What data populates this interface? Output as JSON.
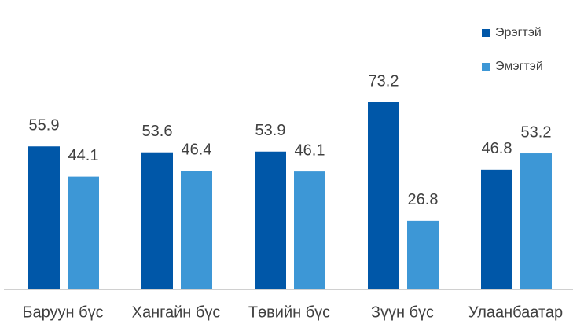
{
  "chart_data": {
    "type": "bar",
    "categories": [
      "Баруун бүс",
      "Хангайн бүс",
      "Төвийн бүс",
      "Зүүн бүс",
      "Улаанбаатар"
    ],
    "series": [
      {
        "name": "Эрэгтэй",
        "color": "#0057a8",
        "values": [
          55.9,
          53.6,
          53.9,
          73.2,
          46.8
        ]
      },
      {
        "name": "Эмэгтэй",
        "color": "#3d97d6",
        "values": [
          44.1,
          46.4,
          46.1,
          26.8,
          53.2
        ]
      }
    ],
    "legend": "right"
  }
}
